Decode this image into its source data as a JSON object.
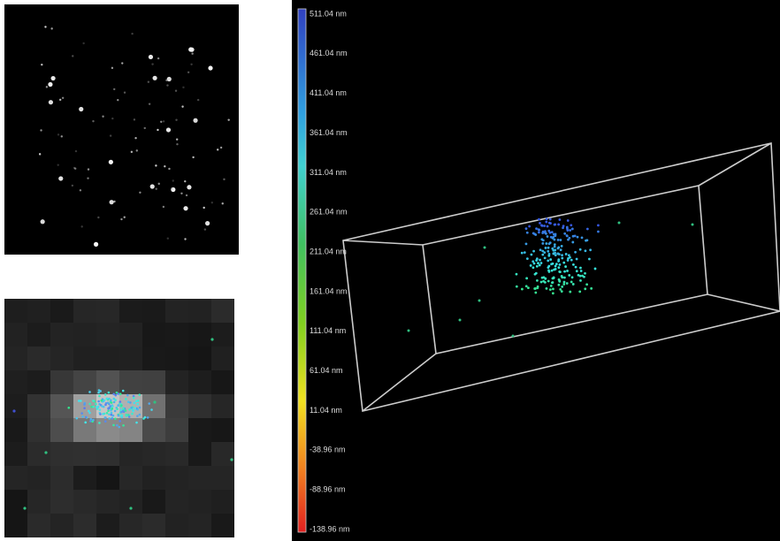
{
  "colorbar": {
    "labels": [
      "511.04 nm",
      "461.04 nm",
      "411.04 nm",
      "361.04 nm",
      "311.04 nm",
      "261.04 nm",
      "211.04 nm",
      "161.04 nm",
      "111.04 nm",
      "61.04 nm",
      "11.04 nm",
      "-38.96 nm",
      "-88.96 nm",
      "-138.96 nm"
    ]
  }
}
